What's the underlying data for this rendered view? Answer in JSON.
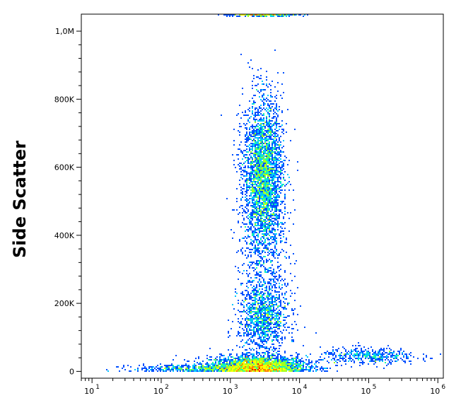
{
  "chart_data": {
    "type": "scatter",
    "style": "density-pseudocolor",
    "title": "",
    "xlabel": "",
    "ylabel": "Side Scatter",
    "x_scale": "log",
    "xlim": [
      7,
      1200000
    ],
    "ylim": [
      -20000,
      1050000
    ],
    "x_ticks": [
      {
        "value": 10,
        "base": "10",
        "exp": "1"
      },
      {
        "value": 100,
        "base": "10",
        "exp": "2"
      },
      {
        "value": 1000,
        "base": "10",
        "exp": "3"
      },
      {
        "value": 10000,
        "base": "10",
        "exp": "4"
      },
      {
        "value": 100000,
        "base": "10",
        "exp": "5"
      },
      {
        "value": 1000000,
        "base": "10",
        "exp": "6"
      }
    ],
    "y_ticks": [
      {
        "value": 0,
        "label": "0"
      },
      {
        "value": 200000,
        "label": "200K"
      },
      {
        "value": 400000,
        "label": "400K"
      },
      {
        "value": 600000,
        "label": "600K"
      },
      {
        "value": 800000,
        "label": "800K"
      },
      {
        "value": 1000000,
        "label": "1,0M"
      }
    ],
    "colorscale": [
      "#0000c8",
      "#0050ff",
      "#00c8ff",
      "#20ffa0",
      "#a0ff20",
      "#ffff00",
      "#ff8000",
      "#ff0000"
    ],
    "populations": [
      {
        "name": "lymphocytes",
        "x_center": 2500,
        "y_center": 15000,
        "x_spread_decades": 0.35,
        "y_spread": 15000,
        "weight": 0.3
      },
      {
        "name": "monocytes",
        "x_center": 3000,
        "y_center": 160000,
        "x_spread_decades": 0.18,
        "y_spread": 50000,
        "weight": 0.12
      },
      {
        "name": "granulocytes",
        "x_center": 3000,
        "y_center": 580000,
        "x_spread_decades": 0.14,
        "y_spread": 110000,
        "weight": 0.35
      },
      {
        "name": "stripe",
        "x_center": 3000,
        "y_center": 330000,
        "x_spread_decades": 0.18,
        "y_spread": 200000,
        "weight": 0.1
      },
      {
        "name": "tail-high",
        "x_center": 100000,
        "y_center": 45000,
        "x_spread_decades": 0.35,
        "y_spread": 12000,
        "weight": 0.05
      },
      {
        "name": "tail-low",
        "x_center": 300,
        "y_center": 8000,
        "x_spread_decades": 0.45,
        "y_spread": 6000,
        "weight": 0.05
      },
      {
        "name": "saturation-top",
        "x_center": 3000,
        "y_center": 1048000,
        "x_spread_decades": 0.25,
        "y_spread": 2000,
        "weight": 0.03
      }
    ]
  }
}
